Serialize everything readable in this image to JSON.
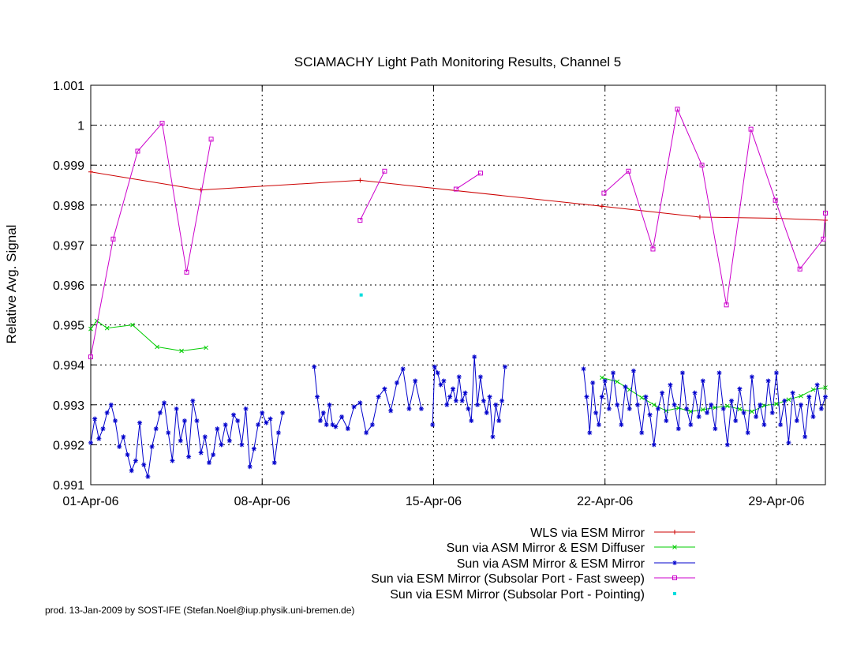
{
  "chart_data": {
    "type": "line",
    "title": "SCIAMACHY Light Path Monitoring Results, Channel 5",
    "ylabel": "Relative Avg. Signal",
    "xlabel": "",
    "ylim": [
      0.991,
      1.001
    ],
    "xlim": [
      "2006-04-01",
      "2006-05-01"
    ],
    "yticks": [
      "0.991",
      "0.992",
      "0.993",
      "0.994",
      "0.995",
      "0.996",
      "0.997",
      "0.998",
      "0.999",
      "1",
      "1.001"
    ],
    "xticks": [
      {
        "date": "2006-04-01",
        "label": "01-Apr-06"
      },
      {
        "date": "2006-04-08",
        "label": "08-Apr-06"
      },
      {
        "date": "2006-04-15",
        "label": "15-Apr-06"
      },
      {
        "date": "2006-04-22",
        "label": "22-Apr-06"
      },
      {
        "date": "2006-04-29",
        "label": "29-Apr-06"
      }
    ],
    "grid": true,
    "legend_position": "bottom-right",
    "series": [
      {
        "name": "WLS via ESM Mirror",
        "color": "#cc0000",
        "marker": "plus",
        "points": [
          [
            "2006-04-01 00:00",
            0.99883
          ],
          [
            "2006-04-05 12:00",
            0.99838
          ],
          [
            "2006-04-12 00:00",
            0.99862
          ],
          [
            "2006-04-21 21:00",
            0.99797
          ],
          [
            "2006-04-25 21:00",
            0.9977
          ],
          [
            "2006-04-29 00:00",
            0.99767
          ],
          [
            "2006-05-01 00:00",
            0.99762
          ]
        ]
      },
      {
        "name": "Sun via ASM Mirror & ESM Diffuser",
        "color": "#00cc00",
        "marker": "cross",
        "segments": [
          [
            [
              "2006-04-01 00:00",
              0.9949
            ],
            [
              "2006-04-01 06:00",
              0.9951
            ],
            [
              "2006-04-01 16:00",
              0.99492
            ],
            [
              "2006-04-02 17:00",
              0.995
            ],
            [
              "2006-04-03 17:00",
              0.99445
            ],
            [
              "2006-04-04 17:00",
              0.99435
            ],
            [
              "2006-04-05 17:00",
              0.99443
            ]
          ],
          [
            [
              "2006-04-21 21:00",
              0.99368
            ],
            [
              "2006-04-22 12:00",
              0.99358
            ],
            [
              "2006-04-23 00:00",
              0.99338
            ],
            [
              "2006-04-23 12:00",
              0.99318
            ],
            [
              "2006-04-24 00:00",
              0.993
            ],
            [
              "2006-04-24 12:00",
              0.99285
            ],
            [
              "2006-04-25 00:00",
              0.99292
            ],
            [
              "2006-04-25 12:00",
              0.99283
            ],
            [
              "2006-04-26 00:00",
              0.99288
            ],
            [
              "2006-04-26 12:00",
              0.99293
            ],
            [
              "2006-04-27 00:00",
              0.99297
            ],
            [
              "2006-04-27 12:00",
              0.99289
            ],
            [
              "2006-04-28 00:00",
              0.99283
            ],
            [
              "2006-04-28 12:00",
              0.99298
            ],
            [
              "2006-04-29 00:00",
              0.99302
            ],
            [
              "2006-04-29 12:00",
              0.99313
            ],
            [
              "2006-04-30 00:00",
              0.99322
            ],
            [
              "2006-04-30 12:00",
              0.99338
            ],
            [
              "2006-05-01 00:00",
              0.99343
            ]
          ]
        ]
      },
      {
        "name": "Sun via ASM Mirror & ESM Mirror",
        "color": "#0000cc",
        "marker": "star",
        "segments": [
          [
            [
              "2006-04-01 00:00",
              0.99205
            ],
            [
              "2006-04-01 04:00",
              0.99265
            ],
            [
              "2006-04-01 08:00",
              0.99215
            ],
            [
              "2006-04-01 12:00",
              0.9924
            ],
            [
              "2006-04-01 16:00",
              0.9928
            ],
            [
              "2006-04-01 20:00",
              0.993
            ],
            [
              "2006-04-02 00:00",
              0.9926
            ],
            [
              "2006-04-02 04:00",
              0.99195
            ],
            [
              "2006-04-02 08:00",
              0.9922
            ],
            [
              "2006-04-02 12:00",
              0.99175
            ],
            [
              "2006-04-02 16:00",
              0.99135
            ],
            [
              "2006-04-02 20:00",
              0.9916
            ],
            [
              "2006-04-03 00:00",
              0.99255
            ],
            [
              "2006-04-03 04:00",
              0.9915
            ],
            [
              "2006-04-03 08:00",
              0.9912
            ],
            [
              "2006-04-03 12:00",
              0.99195
            ],
            [
              "2006-04-03 16:00",
              0.9924
            ],
            [
              "2006-04-03 20:00",
              0.9928
            ],
            [
              "2006-04-04 00:00",
              0.99305
            ],
            [
              "2006-04-04 04:00",
              0.9923
            ],
            [
              "2006-04-04 08:00",
              0.9916
            ],
            [
              "2006-04-04 12:00",
              0.9929
            ],
            [
              "2006-04-04 16:00",
              0.9921
            ],
            [
              "2006-04-04 20:00",
              0.9926
            ],
            [
              "2006-04-05 00:00",
              0.9917
            ],
            [
              "2006-04-05 04:00",
              0.9931
            ],
            [
              "2006-04-05 08:00",
              0.9926
            ],
            [
              "2006-04-05 12:00",
              0.9918
            ],
            [
              "2006-04-05 16:00",
              0.9922
            ],
            [
              "2006-04-05 20:00",
              0.99155
            ],
            [
              "2006-04-06 00:00",
              0.99175
            ],
            [
              "2006-04-06 04:00",
              0.9924
            ],
            [
              "2006-04-06 08:00",
              0.992
            ],
            [
              "2006-04-06 12:00",
              0.9925
            ],
            [
              "2006-04-06 16:00",
              0.9921
            ],
            [
              "2006-04-06 20:00",
              0.99275
            ],
            [
              "2006-04-07 00:00",
              0.9926
            ],
            [
              "2006-04-07 04:00",
              0.992
            ],
            [
              "2006-04-07 08:00",
              0.9929
            ],
            [
              "2006-04-07 12:00",
              0.99145
            ],
            [
              "2006-04-07 16:00",
              0.9919
            ],
            [
              "2006-04-07 20:00",
              0.9925
            ],
            [
              "2006-04-08 00:00",
              0.9928
            ],
            [
              "2006-04-08 04:00",
              0.99255
            ],
            [
              "2006-04-08 08:00",
              0.99265
            ],
            [
              "2006-04-08 12:00",
              0.99155
            ],
            [
              "2006-04-08 16:00",
              0.9923
            ],
            [
              "2006-04-08 20:00",
              0.9928
            ]
          ],
          [
            [
              "2006-04-10 03:00",
              0.99395
            ],
            [
              "2006-04-10 06:00",
              0.9932
            ],
            [
              "2006-04-10 09:00",
              0.9926
            ],
            [
              "2006-04-10 12:00",
              0.9928
            ],
            [
              "2006-04-10 15:00",
              0.9925
            ],
            [
              "2006-04-10 18:00",
              0.993
            ],
            [
              "2006-04-10 21:00",
              0.9925
            ],
            [
              "2006-04-11 00:00",
              0.99245
            ],
            [
              "2006-04-11 06:00",
              0.9927
            ],
            [
              "2006-04-11 12:00",
              0.9924
            ],
            [
              "2006-04-11 18:00",
              0.99295
            ],
            [
              "2006-04-12 00:00",
              0.99305
            ],
            [
              "2006-04-12 06:00",
              0.9923
            ],
            [
              "2006-04-12 12:00",
              0.9925
            ],
            [
              "2006-04-12 18:00",
              0.9932
            ],
            [
              "2006-04-13 00:00",
              0.9934
            ],
            [
              "2006-04-13 06:00",
              0.99285
            ],
            [
              "2006-04-13 12:00",
              0.99355
            ],
            [
              "2006-04-13 18:00",
              0.9939
            ],
            [
              "2006-04-14 00:00",
              0.9929
            ],
            [
              "2006-04-14 06:00",
              0.9936
            ],
            [
              "2006-04-14 12:00",
              0.9929
            ]
          ],
          [
            [
              "2006-04-14 23:00",
              0.9925
            ],
            [
              "2006-04-15 01:00",
              0.99395
            ],
            [
              "2006-04-15 04:00",
              0.9938
            ],
            [
              "2006-04-15 07:00",
              0.9935
            ],
            [
              "2006-04-15 10:00",
              0.9936
            ],
            [
              "2006-04-15 13:00",
              0.993
            ],
            [
              "2006-04-15 16:00",
              0.9932
            ],
            [
              "2006-04-15 19:00",
              0.9934
            ],
            [
              "2006-04-15 22:00",
              0.9931
            ],
            [
              "2006-04-16 01:00",
              0.9937
            ],
            [
              "2006-04-16 04:00",
              0.9931
            ],
            [
              "2006-04-16 07:00",
              0.9933
            ],
            [
              "2006-04-16 10:00",
              0.9929
            ],
            [
              "2006-04-16 13:00",
              0.9926
            ],
            [
              "2006-04-16 16:00",
              0.9942
            ],
            [
              "2006-04-16 19:00",
              0.993
            ],
            [
              "2006-04-16 22:00",
              0.9937
            ],
            [
              "2006-04-17 01:00",
              0.9931
            ],
            [
              "2006-04-17 04:00",
              0.9928
            ],
            [
              "2006-04-17 07:00",
              0.9932
            ],
            [
              "2006-04-17 10:00",
              0.9922
            ],
            [
              "2006-04-17 13:00",
              0.993
            ],
            [
              "2006-04-17 16:00",
              0.9926
            ],
            [
              "2006-04-17 19:00",
              0.9931
            ],
            [
              "2006-04-17 22:00",
              0.99395
            ]
          ],
          [
            [
              "2006-04-21 03:00",
              0.9939
            ],
            [
              "2006-04-21 06:00",
              0.9932
            ],
            [
              "2006-04-21 09:00",
              0.9923
            ],
            [
              "2006-04-21 12:00",
              0.99355
            ],
            [
              "2006-04-21 15:00",
              0.9928
            ],
            [
              "2006-04-21 18:00",
              0.9925
            ],
            [
              "2006-04-21 21:00",
              0.9932
            ],
            [
              "2006-04-22 00:00",
              0.9936
            ],
            [
              "2006-04-22 04:00",
              0.9929
            ],
            [
              "2006-04-22 08:00",
              0.9938
            ],
            [
              "2006-04-22 12:00",
              0.993
            ],
            [
              "2006-04-22 16:00",
              0.9925
            ],
            [
              "2006-04-22 20:00",
              0.99345
            ],
            [
              "2006-04-23 00:00",
              0.9929
            ],
            [
              "2006-04-23 04:00",
              0.99385
            ],
            [
              "2006-04-23 08:00",
              0.993
            ],
            [
              "2006-04-23 12:00",
              0.9923
            ],
            [
              "2006-04-23 16:00",
              0.9932
            ],
            [
              "2006-04-23 20:00",
              0.99275
            ],
            [
              "2006-04-24 00:00",
              0.992
            ],
            [
              "2006-04-24 04:00",
              0.9929
            ],
            [
              "2006-04-24 08:00",
              0.9933
            ],
            [
              "2006-04-24 12:00",
              0.9926
            ],
            [
              "2006-04-24 16:00",
              0.9935
            ],
            [
              "2006-04-24 20:00",
              0.993
            ],
            [
              "2006-04-25 00:00",
              0.9924
            ],
            [
              "2006-04-25 04:00",
              0.9938
            ],
            [
              "2006-04-25 08:00",
              0.9929
            ],
            [
              "2006-04-25 12:00",
              0.9925
            ],
            [
              "2006-04-25 16:00",
              0.9933
            ],
            [
              "2006-04-25 20:00",
              0.9927
            ],
            [
              "2006-04-26 00:00",
              0.9936
            ],
            [
              "2006-04-26 04:00",
              0.9928
            ],
            [
              "2006-04-26 08:00",
              0.993
            ],
            [
              "2006-04-26 12:00",
              0.9924
            ],
            [
              "2006-04-26 16:00",
              0.9938
            ],
            [
              "2006-04-26 20:00",
              0.9929
            ],
            [
              "2006-04-27 00:00",
              0.992
            ],
            [
              "2006-04-27 04:00",
              0.9931
            ],
            [
              "2006-04-27 08:00",
              0.9926
            ],
            [
              "2006-04-27 12:00",
              0.9934
            ],
            [
              "2006-04-27 16:00",
              0.9928
            ],
            [
              "2006-04-27 20:00",
              0.9923
            ],
            [
              "2006-04-28 00:00",
              0.9937
            ],
            [
              "2006-04-28 04:00",
              0.9927
            ],
            [
              "2006-04-28 08:00",
              0.993
            ],
            [
              "2006-04-28 12:00",
              0.9925
            ],
            [
              "2006-04-28 16:00",
              0.9936
            ],
            [
              "2006-04-28 20:00",
              0.9928
            ],
            [
              "2006-04-29 00:00",
              0.9938
            ],
            [
              "2006-04-29 04:00",
              0.9925
            ],
            [
              "2006-04-29 08:00",
              0.9931
            ],
            [
              "2006-04-29 12:00",
              0.99205
            ],
            [
              "2006-04-29 16:00",
              0.9933
            ],
            [
              "2006-04-29 20:00",
              0.9926
            ],
            [
              "2006-04-30 00:00",
              0.993
            ],
            [
              "2006-04-30 04:00",
              0.9922
            ],
            [
              "2006-04-30 08:00",
              0.9932
            ],
            [
              "2006-04-30 12:00",
              0.9927
            ],
            [
              "2006-04-30 16:00",
              0.9935
            ],
            [
              "2006-04-30 20:00",
              0.9929
            ],
            [
              "2006-05-01 00:00",
              0.9932
            ]
          ]
        ]
      },
      {
        "name": "Sun via ESM Mirror (Subsolar Port - Fast sweep)",
        "color": "#cc00cc",
        "marker": "square",
        "segments": [
          [
            [
              "2006-04-01 00:00",
              0.9942
            ],
            [
              "2006-04-01 22:00",
              0.99715
            ],
            [
              "2006-04-02 22:00",
              0.99935
            ],
            [
              "2006-04-03 22:00",
              1.00005
            ],
            [
              "2006-04-04 22:00",
              0.99632
            ],
            [
              "2006-04-05 22:00",
              0.99965
            ]
          ],
          [
            [
              "2006-04-12 00:00",
              0.99762
            ],
            [
              "2006-04-13 00:00",
              0.99885
            ]
          ],
          [
            [
              "2006-04-15 22:00",
              0.9984
            ],
            [
              "2006-04-16 22:00",
              0.9988
            ]
          ],
          [
            [
              "2006-04-21 23:00",
              0.9983
            ],
            [
              "2006-04-22 23:00",
              0.99885
            ],
            [
              "2006-04-23 23:00",
              0.9969
            ],
            [
              "2006-04-24 23:00",
              1.0004
            ],
            [
              "2006-04-25 23:00",
              0.999
            ],
            [
              "2006-04-26 23:00",
              0.9955
            ],
            [
              "2006-04-27 23:00",
              0.9999
            ],
            [
              "2006-04-28 23:00",
              0.99812
            ],
            [
              "2006-04-29 23:00",
              0.9964
            ],
            [
              "2006-04-30 22:00",
              0.99715
            ],
            [
              "2006-05-01 00:00",
              0.9978
            ]
          ]
        ]
      },
      {
        "name": "Sun via ESM Mirror (Subsolar Port - Pointing)",
        "color": "#00dddd",
        "marker": "dot",
        "points": [
          [
            "2006-04-12 01:00",
            0.99575
          ]
        ]
      }
    ]
  },
  "footer": "prod. 13-Jan-2009 by SOST-IFE (Stefan.Noel@iup.physik.uni-bremen.de)"
}
